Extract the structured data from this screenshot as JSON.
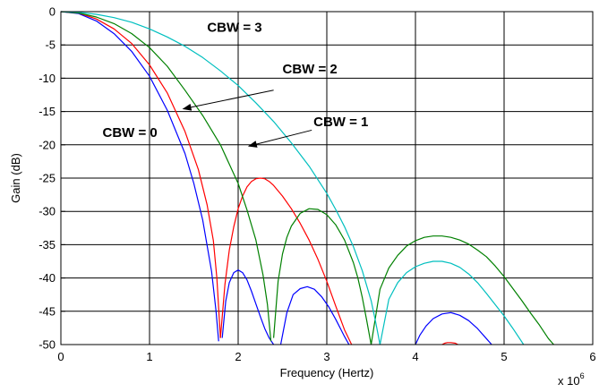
{
  "chart_data": {
    "type": "line",
    "xlabel": "Frequency (Hertz)",
    "ylabel": "Gain (dB)",
    "x_multiplier": {
      "base": "x 10",
      "exponent": "6"
    },
    "xlim": [
      0,
      6
    ],
    "ylim": [
      -50,
      0
    ],
    "x_ticks": [
      "0",
      "1",
      "2",
      "3",
      "4",
      "5",
      "6"
    ],
    "y_ticks": [
      "0",
      "-5",
      "-10",
      "-15",
      "-20",
      "-25",
      "-30",
      "-35",
      "-40",
      "-45",
      "-50"
    ],
    "grid": true,
    "colors": {
      "CBW = 0": "#0000ff",
      "CBW = 1": "#008000",
      "CBW = 2": "#ff0000",
      "CBW = 3": "#00bfbf"
    },
    "series": [
      {
        "name": "CBW = 0",
        "color": "#0000ff",
        "lobes": [
          {
            "x": [
              0.0,
              0.2,
              0.4,
              0.6,
              0.8,
              1.0,
              1.2,
              1.4,
              1.5,
              1.6,
              1.7,
              1.75,
              1.78
            ],
            "y": [
              0.0,
              -0.3,
              -1.4,
              -3.3,
              -6.0,
              -9.7,
              -14.8,
              -21.3,
              -25.8,
              -31.3,
              -39.0,
              -45.0,
              -49.5
            ]
          },
          {
            "x": [
              1.82,
              1.86,
              1.9,
              1.95,
              2.0,
              2.05,
              2.1,
              2.15,
              2.2,
              2.25,
              2.3,
              2.35,
              2.4
            ],
            "y": [
              -49.0,
              -43.5,
              -40.7,
              -39.2,
              -38.8,
              -39.2,
              -40.3,
              -42.0,
              -43.9,
              -45.8,
              -47.6,
              -49.0,
              -50.0
            ]
          },
          {
            "x": [
              2.48,
              2.55,
              2.62,
              2.7,
              2.78,
              2.86,
              2.94,
              3.02,
              3.1,
              3.2,
              3.25
            ],
            "y": [
              -50.0,
              -45.2,
              -42.5,
              -41.6,
              -41.3,
              -41.7,
              -42.8,
              -44.3,
              -46.2,
              -48.8,
              -50.0
            ]
          },
          {
            "x": [
              4.0,
              4.05,
              4.12,
              4.2,
              4.3,
              4.4,
              4.5,
              4.6,
              4.7,
              4.8,
              4.86
            ],
            "y": [
              -50.0,
              -48.6,
              -47.2,
              -46.1,
              -45.4,
              -45.2,
              -45.6,
              -46.4,
              -47.6,
              -49.1,
              -50.0
            ]
          }
        ]
      },
      {
        "name": "CBW = 2",
        "color": "#ff0000",
        "lobes": [
          {
            "x": [
              0.0,
              0.2,
              0.4,
              0.6,
              0.8,
              1.0,
              1.2,
              1.4,
              1.55,
              1.65,
              1.72,
              1.76,
              1.8
            ],
            "y": [
              0.0,
              -0.2,
              -1.1,
              -2.6,
              -4.8,
              -8.0,
              -12.2,
              -18.0,
              -23.7,
              -29.0,
              -34.4,
              -40.0,
              -49.0
            ]
          },
          {
            "x": [
              1.8,
              1.85,
              1.9,
              1.95,
              2.0,
              2.05,
              2.1,
              2.15,
              2.2,
              2.25,
              2.3,
              2.35,
              2.4,
              2.5,
              2.6,
              2.7,
              2.8,
              2.9,
              3.0,
              3.1,
              3.2,
              3.28
            ],
            "y": [
              -49.0,
              -41.0,
              -35.8,
              -32.3,
              -29.6,
              -27.7,
              -26.3,
              -25.5,
              -25.1,
              -25.0,
              -25.1,
              -25.5,
              -26.1,
              -27.7,
              -29.6,
              -31.8,
              -34.3,
              -37.2,
              -40.5,
              -44.2,
              -47.8,
              -50.0
            ]
          },
          {
            "x": [
              4.3,
              4.33,
              4.36,
              4.4,
              4.45,
              4.48
            ],
            "y": [
              -50.0,
              -49.8,
              -49.7,
              -49.7,
              -49.8,
              -50.0
            ]
          }
        ]
      },
      {
        "name": "CBW = 1",
        "color": "#008000",
        "lobes": [
          {
            "x": [
              0.0,
              0.2,
              0.4,
              0.6,
              0.8,
              1.0,
              1.2,
              1.4,
              1.6,
              1.8,
              2.0,
              2.1,
              2.2,
              2.28,
              2.33,
              2.37
            ],
            "y": [
              0.0,
              -0.2,
              -0.8,
              -1.8,
              -3.3,
              -5.4,
              -8.2,
              -11.8,
              -15.6,
              -20.0,
              -25.8,
              -29.8,
              -34.3,
              -39.5,
              -44.0,
              -49.5
            ]
          },
          {
            "x": [
              2.4,
              2.45,
              2.5,
              2.55,
              2.6,
              2.7,
              2.8,
              2.9,
              3.0,
              3.1,
              3.2,
              3.3,
              3.35,
              3.4,
              3.45,
              3.5
            ],
            "y": [
              -49.0,
              -40.5,
              -36.4,
              -33.9,
              -32.2,
              -30.3,
              -29.6,
              -29.7,
              -30.5,
              -32.0,
              -34.3,
              -37.7,
              -40.0,
              -42.9,
              -46.4,
              -50.0
            ]
          },
          {
            "x": [
              3.5,
              3.6,
              3.7,
              3.8,
              3.9,
              4.0,
              4.1,
              4.2,
              4.3,
              4.4,
              4.5,
              4.6,
              4.7,
              4.8,
              4.9,
              5.0,
              5.1,
              5.2,
              5.3,
              5.4,
              5.5,
              5.56
            ],
            "y": [
              -50.0,
              -41.7,
              -38.5,
              -36.6,
              -35.2,
              -34.4,
              -33.9,
              -33.7,
              -33.7,
              -33.9,
              -34.3,
              -34.9,
              -35.8,
              -36.8,
              -38.2,
              -39.8,
              -41.6,
              -43.4,
              -45.3,
              -47.1,
              -49.1,
              -50.0
            ]
          }
        ]
      },
      {
        "name": "CBW = 3",
        "color": "#00bfbf",
        "lobes": [
          {
            "x": [
              0.0,
              0.2,
              0.4,
              0.6,
              0.8,
              1.0,
              1.2,
              1.4,
              1.6,
              1.8,
              2.0,
              2.2,
              2.4,
              2.6,
              2.8,
              3.0,
              3.1,
              3.2,
              3.3,
              3.4,
              3.5,
              3.55,
              3.6
            ],
            "y": [
              0.0,
              -0.1,
              -0.4,
              -0.9,
              -1.6,
              -2.6,
              -3.8,
              -5.2,
              -6.9,
              -8.9,
              -11.1,
              -13.7,
              -16.5,
              -19.7,
              -23.2,
              -27.3,
              -29.7,
              -32.3,
              -35.3,
              -38.9,
              -43.4,
              -46.5,
              -50.0
            ]
          },
          {
            "x": [
              3.6,
              3.7,
              3.8,
              3.9,
              4.0,
              4.1,
              4.2,
              4.3,
              4.4,
              4.5,
              4.6,
              4.7,
              4.8,
              4.9,
              5.0,
              5.1,
              5.2,
              5.22
            ],
            "y": [
              -50.0,
              -43.2,
              -40.7,
              -39.2,
              -38.3,
              -37.8,
              -37.5,
              -37.5,
              -37.8,
              -38.4,
              -39.4,
              -40.7,
              -42.3,
              -44.0,
              -45.7,
              -47.6,
              -49.6,
              -50.0
            ]
          }
        ]
      }
    ],
    "annotations": [
      {
        "text": "CBW = 3",
        "x": 1.65,
        "y": -3.0
      },
      {
        "text": "CBW = 2",
        "x": 2.5,
        "y": -9.3
      },
      {
        "text": "CBW = 1",
        "x": 2.85,
        "y": -17.2
      },
      {
        "text": "CBW = 0",
        "x": 0.47,
        "y": -18.8
      }
    ],
    "arrows": [
      {
        "from": [
          2.4,
          -11.8
        ],
        "to": [
          1.38,
          -14.6
        ]
      },
      {
        "from": [
          2.83,
          -17.8
        ],
        "to": [
          2.12,
          -20.2
        ]
      }
    ]
  }
}
